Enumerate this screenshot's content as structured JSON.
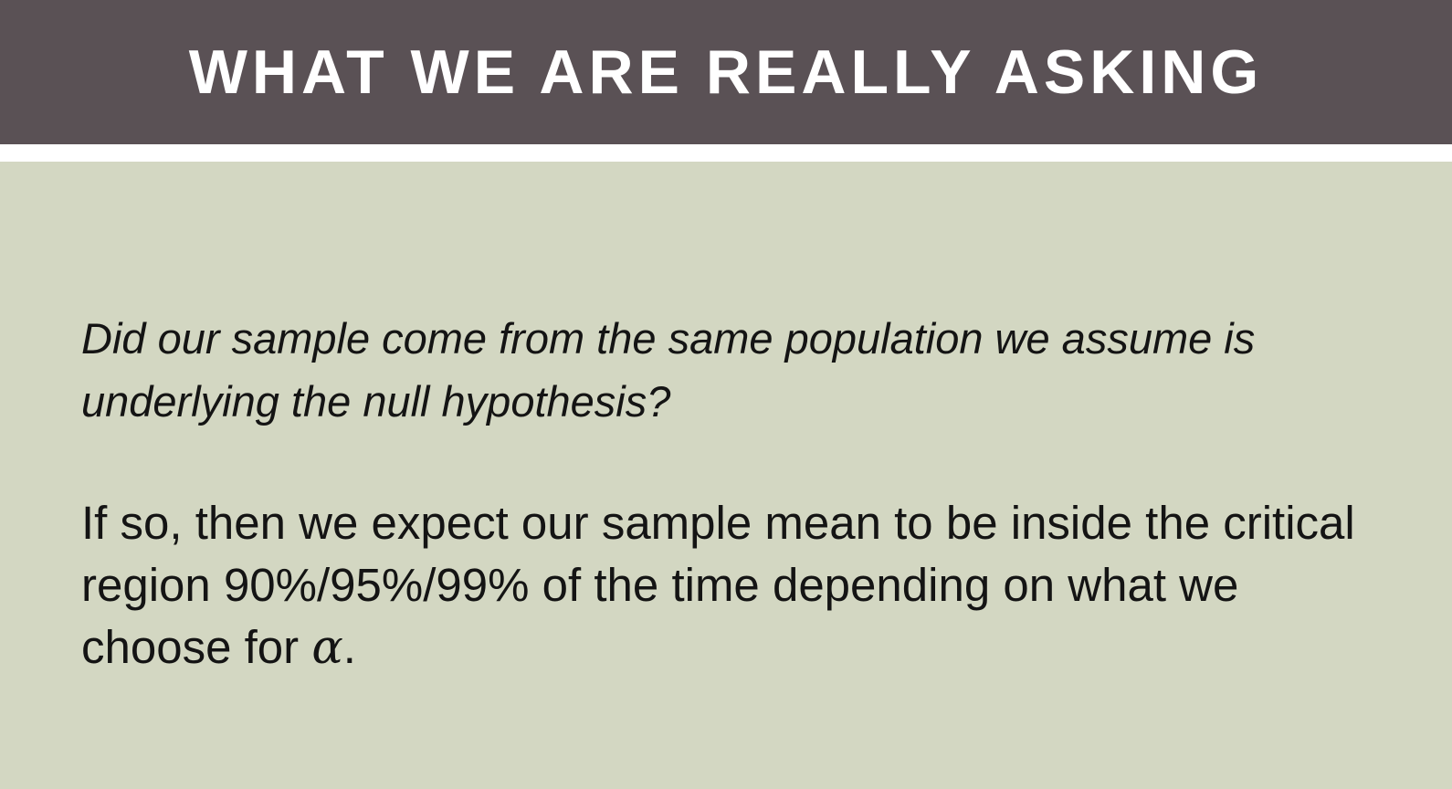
{
  "slide": {
    "title": "WHAT WE ARE REALLY ASKING",
    "question": "Did our sample come from the same population we assume is underlying the null hypothesis?",
    "answer_text": "If so, then we expect our sample mean to be inside the critical region 90%/95%/99% of the time depending on what we choose for ",
    "alpha_symbol": "α",
    "answer_end": "."
  },
  "colors": {
    "title_bar": "#5a5155",
    "divider": "#ffffff",
    "background": "#d3d7c2",
    "title_text": "#ffffff",
    "body_text": "#141414"
  }
}
